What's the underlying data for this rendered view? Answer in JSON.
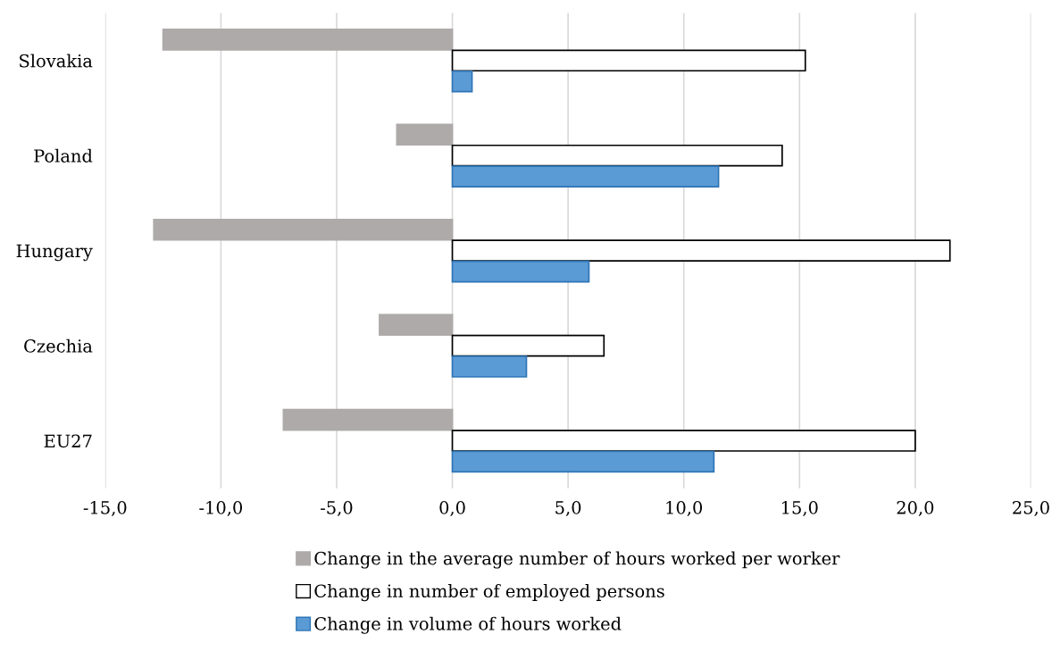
{
  "chart_data": {
    "type": "bar",
    "orientation": "horizontal",
    "categories": [
      "Slovakia",
      "Poland",
      "Hungary",
      "Czechia",
      "EU27"
    ],
    "series": [
      {
        "name": "Change in the average number of hours worked per worker",
        "color": "#aeaaaa",
        "values": [
          -12.5,
          -2.4,
          -12.9,
          -3.15,
          -7.3
        ]
      },
      {
        "name": "Change in number of employed persons",
        "color": "#ffffff",
        "values": [
          15.25,
          14.25,
          21.5,
          6.55,
          20.0
        ]
      },
      {
        "name": "Change in volume of hours worked",
        "color": "#5b9bd5",
        "values": [
          0.85,
          11.5,
          5.9,
          3.2,
          11.3
        ]
      }
    ],
    "xlim": [
      -15,
      25
    ],
    "xticks": [
      {
        "value": -15,
        "label": "-15,0"
      },
      {
        "value": -10,
        "label": "-10,0"
      },
      {
        "value": -5,
        "label": "-5,0"
      },
      {
        "value": 0,
        "label": "0,0"
      },
      {
        "value": 5,
        "label": "5,0"
      },
      {
        "value": 10,
        "label": "10,0"
      },
      {
        "value": 15,
        "label": "15,0"
      },
      {
        "value": 20,
        "label": "20,0"
      },
      {
        "value": 25,
        "label": "25,0"
      }
    ],
    "grid": "x",
    "legend": "bottom"
  }
}
